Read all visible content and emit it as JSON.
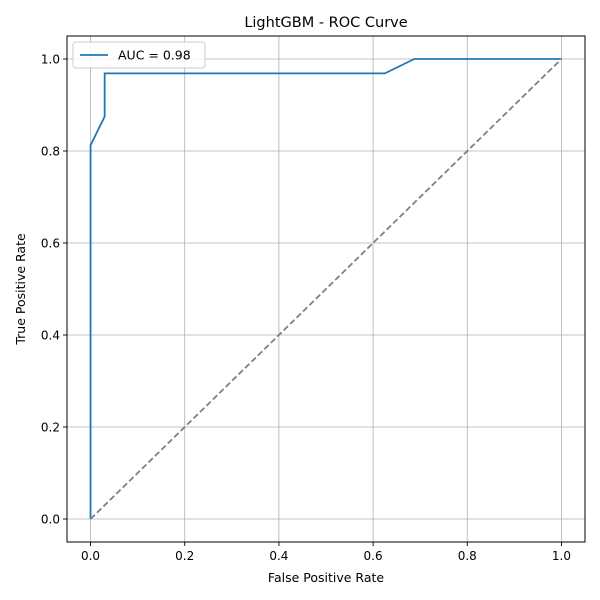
{
  "chart_data": {
    "type": "line",
    "title": "LightGBM - ROC Curve",
    "xlabel": "False Positive Rate",
    "ylabel": "True Positive Rate",
    "xlim": [
      -0.05,
      1.05
    ],
    "ylim": [
      -0.05,
      1.05
    ],
    "grid": true,
    "legend_position": "upper-left",
    "xticks": [
      0.0,
      0.2,
      0.4,
      0.6,
      0.8,
      1.0
    ],
    "yticks": [
      0.0,
      0.2,
      0.4,
      0.6,
      0.8,
      1.0
    ],
    "xtick_labels": [
      "0.0",
      "0.2",
      "0.4",
      "0.6",
      "0.8",
      "1.0"
    ],
    "ytick_labels": [
      "0.0",
      "0.2",
      "0.4",
      "0.6",
      "0.8",
      "1.0"
    ],
    "series": [
      {
        "name": "AUC = 0.98",
        "color": "#1f77b4",
        "style": "solid",
        "x": [
          0.0,
          0.0,
          0.0,
          0.03,
          0.03,
          0.03,
          0.625,
          0.6875,
          1.0
        ],
        "y": [
          0.0,
          0.0,
          0.8125,
          0.875,
          0.875,
          0.96875,
          0.96875,
          1.0,
          1.0
        ]
      },
      {
        "color": "#808080",
        "style": "dashed",
        "x": [
          0.0,
          1.0
        ],
        "y": [
          0.0,
          1.0
        ]
      }
    ]
  }
}
